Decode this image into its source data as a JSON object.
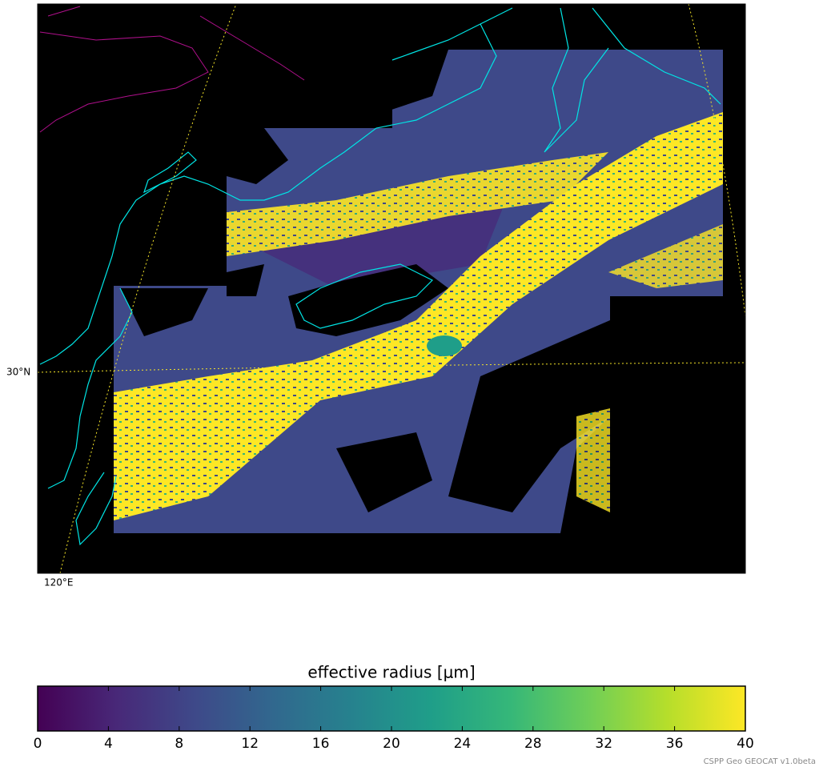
{
  "map": {
    "lat_labels": [
      "30°N"
    ],
    "lon_labels": [
      "120°E"
    ]
  },
  "colorbar": {
    "label": "effective radius [μm]",
    "lim": [
      0,
      40
    ],
    "ticks": [
      0,
      4,
      8,
      12,
      16,
      20,
      24,
      28,
      32,
      36,
      40
    ],
    "colors": [
      "#440154",
      "#482878",
      "#3e4989",
      "#31688e",
      "#26828e",
      "#1f9e89",
      "#35b779",
      "#6ece58",
      "#b5de2b",
      "#fde725"
    ]
  },
  "credit": "CSPP Geo GEOCAT v1.0beta"
}
